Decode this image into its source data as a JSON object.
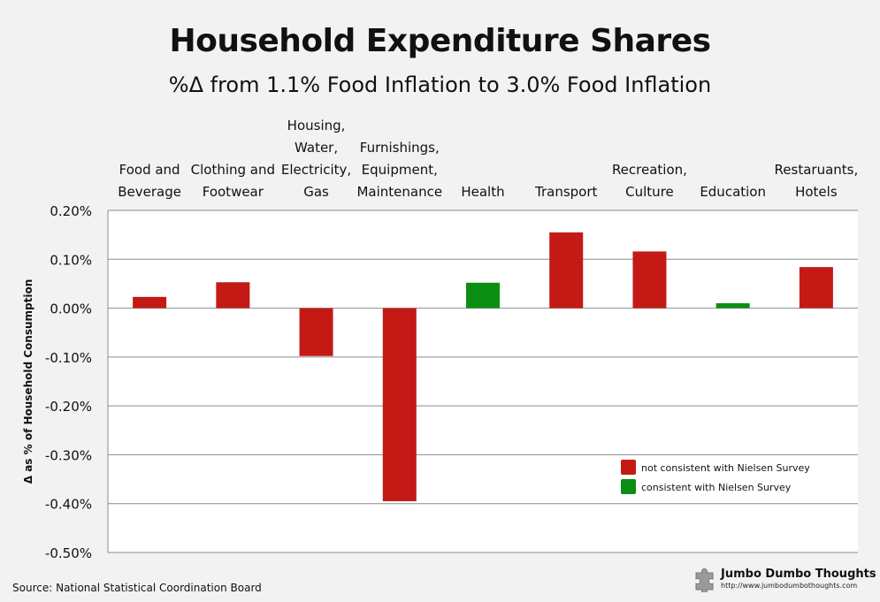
{
  "title": "Household Expenditure Shares",
  "subtitle": "%Δ from 1.1% Food Inflation to 3.0% Food Inflation",
  "source_label": "Source:",
  "source_text": "National Statistical Coordination Board",
  "brand": {
    "name": "Jumbo Dumbo Thoughts",
    "url": "http://www.jumbodumbothoughts.com",
    "icon": "puzzle-piece-icon"
  },
  "colors": {
    "not_consistent": "#c41a16",
    "consistent": "#0a8f12"
  },
  "chart_data": {
    "type": "bar",
    "title": "Household Expenditure Shares",
    "subtitle": "%Δ from 1.1% Food Inflation to 3.0% Food Inflation",
    "ylabel": "Δ as % of Household Consumption",
    "xlabel": "",
    "ylim": [
      -0.5,
      0.2
    ],
    "yticks": [
      "0.20%",
      "0.10%",
      "0.00%",
      "-0.10%",
      "-0.20%",
      "-0.30%",
      "-0.40%",
      "-0.50%"
    ],
    "ytick_values": [
      0.2,
      0.1,
      0.0,
      -0.1,
      -0.2,
      -0.3,
      -0.4,
      -0.5
    ],
    "grid": true,
    "categories": [
      "Food and\nBeverage",
      "Clothing and\nFootwear",
      "Housing,\nWater,\nElectricity,\nGas",
      "Furnishings,\nEquipment,\nMaintenance",
      "Health",
      "Transport",
      "Recreation,\nCulture",
      "Education",
      "Restaruants,\nHotels"
    ],
    "values": [
      0.023,
      0.053,
      -0.098,
      -0.395,
      0.052,
      0.155,
      0.116,
      0.01,
      0.084
    ],
    "consistent": [
      false,
      false,
      false,
      false,
      true,
      false,
      false,
      true,
      false
    ],
    "legend": {
      "placement": "bottom-right",
      "entries": [
        "not consistent with Nielsen Survey",
        "consistent with Nielsen Survey"
      ]
    }
  }
}
